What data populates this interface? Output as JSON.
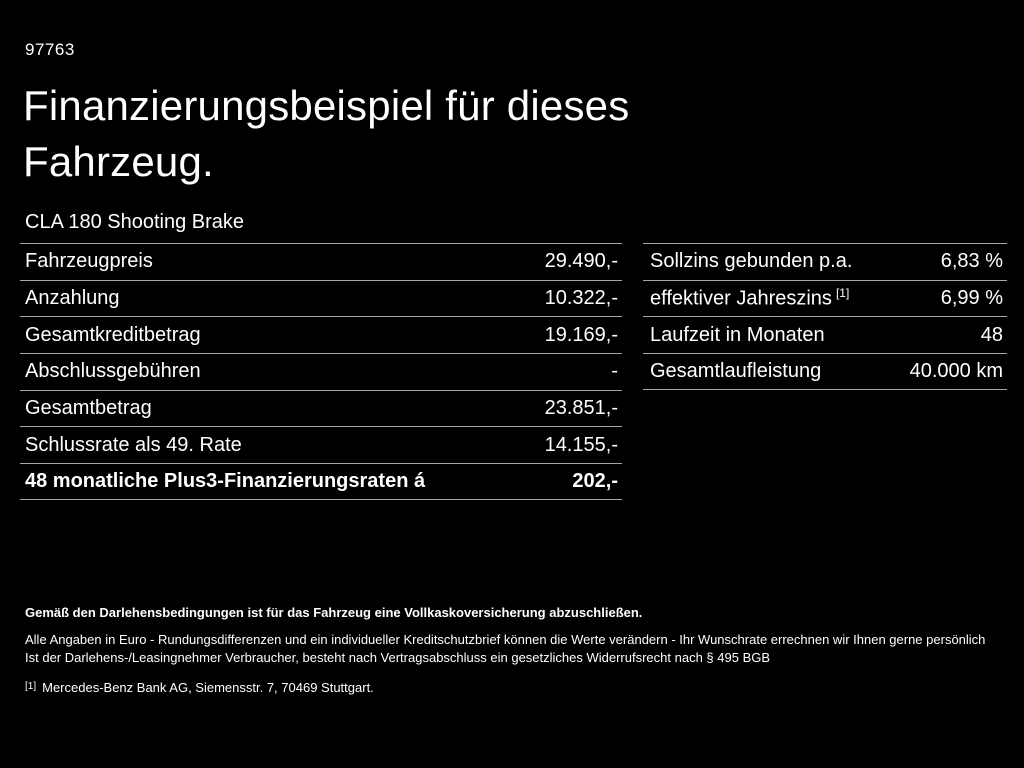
{
  "page": {
    "doc_number": "97763",
    "title_line1": "Finanzierungsbeispiel für dieses",
    "title_line2": "Fahrzeug.",
    "model": "CLA 180 Shooting Brake"
  },
  "finance_table": {
    "rows": [
      {
        "label": "Fahrzeugpreis",
        "value": "29.490,-"
      },
      {
        "label": "Anzahlung",
        "value": "10.322,-"
      },
      {
        "label": "Gesamtkreditbetrag",
        "value": "19.169,-"
      },
      {
        "label": "Abschlussgebühren",
        "value": "-"
      },
      {
        "label": "Gesamtbetrag",
        "value": "23.851,-"
      },
      {
        "label": "Schlussrate als 49. Rate",
        "value": "14.155,-"
      },
      {
        "label": "48 monatliche Plus3-Finanzierungsraten á",
        "value": "202,-"
      }
    ]
  },
  "conditions_table": {
    "rows": [
      {
        "label": "Sollzins gebunden p.a.",
        "value": "6,83 %"
      },
      {
        "label": "effektiver Jahreszins",
        "superscript": "[1]",
        "value": "6,99 %"
      },
      {
        "label": "Laufzeit in Monaten",
        "value": "48"
      },
      {
        "label": "Gesamtlaufleistung",
        "value": "40.000 km"
      }
    ]
  },
  "footnotes": {
    "insurance_note": "Gemäß den Darlehensbedingungen ist für das Fahrzeug eine Vollkaskoversicherung abzuschließen.",
    "disclaimer_1": "Alle Angaben in Euro - Rundungsdifferenzen und ein individueller Kreditschutzbrief können die Werte verändern - Ihr Wunschrate errechnen wir Ihnen gerne persönlich",
    "disclaimer_2": "Ist der Darlehens-/Leasingnehmer Verbraucher, besteht nach Vertragsabschluss ein gesetzliches Widerrufsrecht nach § 495 BGB",
    "reference_marker": "[1]",
    "reference_text": "Mercedes-Benz Bank AG, Siemensstr. 7, 70469 Stuttgart."
  },
  "colors": {
    "background": "#000000",
    "text": "#ffffff",
    "divider": "#a6a6a6"
  }
}
